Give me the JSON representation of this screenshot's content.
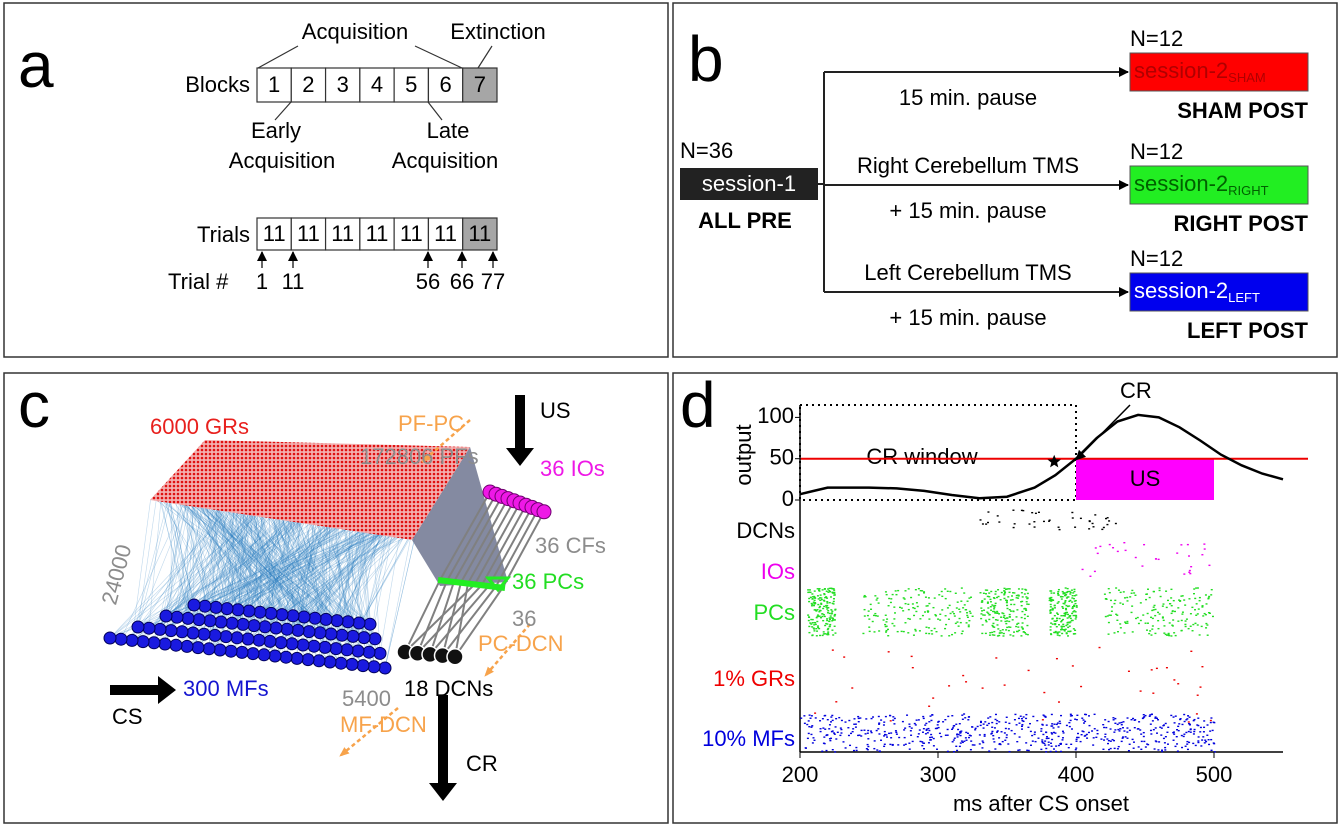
{
  "panel_a": {
    "label": "a",
    "acquisition": "Acquisition",
    "extinction": "Extinction",
    "early": [
      "Early",
      "Acquisition"
    ],
    "late": [
      "Late",
      "Acquisition"
    ],
    "blocks_label": "Blocks",
    "blocks": [
      1,
      2,
      3,
      4,
      5,
      6,
      7
    ],
    "trials_label": "Trials",
    "trials": [
      11,
      11,
      11,
      11,
      11,
      11,
      11
    ],
    "trial_num_label": "Trial #",
    "trial_nums": [
      1,
      11,
      56,
      66,
      77
    ]
  },
  "panel_b": {
    "label": "b",
    "source": {
      "n": "N=36",
      "box": "session-1",
      "group": "ALL PRE"
    },
    "branches": [
      {
        "n": "N=12",
        "box": "session-2",
        "sub": "SHAM",
        "group": "SHAM POST",
        "color": "#ff0000",
        "text_color": "#b00000",
        "below": "15 min. pause"
      },
      {
        "n": "N=12",
        "box": "session-2",
        "sub": "RIGHT",
        "group": "RIGHT POST",
        "color": "#22ee22",
        "text_color": "#006000",
        "above": "Right Cerebellum TMS",
        "below": "+ 15 min. pause"
      },
      {
        "n": "N=12",
        "box": "session-2",
        "sub": "LEFT",
        "group": "LEFT POST",
        "color": "#0000ee",
        "text_color": "#ffffff",
        "above": "Left Cerebellum TMS",
        "below": "+ 15 min. pause"
      }
    ]
  },
  "panel_c": {
    "label": "c",
    "grs": "6000 GRs",
    "pf_pc": "PF-PC",
    "pfs": "172806 PFs",
    "us": "US",
    "ios": "36 IOs",
    "cfs": "36 CFs",
    "pcs": "36 PCs",
    "gr_mf": "24000",
    "pc_dcn_n": "36",
    "pc_dcn": "PC-DCN",
    "mfs": "300 MFs",
    "cs": "CS",
    "mf_dcn_n": "5400",
    "dcns": "18 DCNs",
    "mf_dcn": "MF-DCN",
    "cr": "CR"
  },
  "chart_data": {
    "type": "line",
    "panel_label": "d",
    "ylabel": "output",
    "xlabel": "ms after CS onset",
    "x": [
      200,
      210,
      220,
      230,
      250,
      270,
      290,
      310,
      330,
      350,
      370,
      385,
      400,
      415,
      430,
      445,
      460,
      475,
      490,
      505,
      520,
      535,
      550
    ],
    "values": [
      7,
      11,
      15,
      15,
      15,
      14,
      11,
      6,
      2,
      4,
      15,
      30,
      50,
      75,
      95,
      103,
      100,
      88,
      72,
      55,
      42,
      32,
      25
    ],
    "color": "#000000",
    "threshold": 50,
    "threshold_color": "#ee0000",
    "cr_window": {
      "label": "CR window",
      "x": [
        200,
        400
      ]
    },
    "us_box": {
      "label": "US",
      "x": [
        400,
        500
      ],
      "y": [
        0,
        50
      ],
      "color": "#ff00ff"
    },
    "cr_label": "CR",
    "cr_onset": 390,
    "raster_rows": [
      {
        "name": "DCNs",
        "color": "#000000"
      },
      {
        "name": "IOs",
        "color": "#ee00ee"
      },
      {
        "name": "PCs",
        "color": "#22dd22"
      },
      {
        "name": "1% GRs",
        "color": "#ee0000"
      },
      {
        "name": "10% MFs",
        "color": "#0000dd"
      }
    ],
    "xlim": [
      200,
      550
    ],
    "xticks": [
      200,
      300,
      400,
      500
    ],
    "ylim": [
      0,
      115
    ],
    "yticks": [
      0,
      50,
      100
    ]
  }
}
